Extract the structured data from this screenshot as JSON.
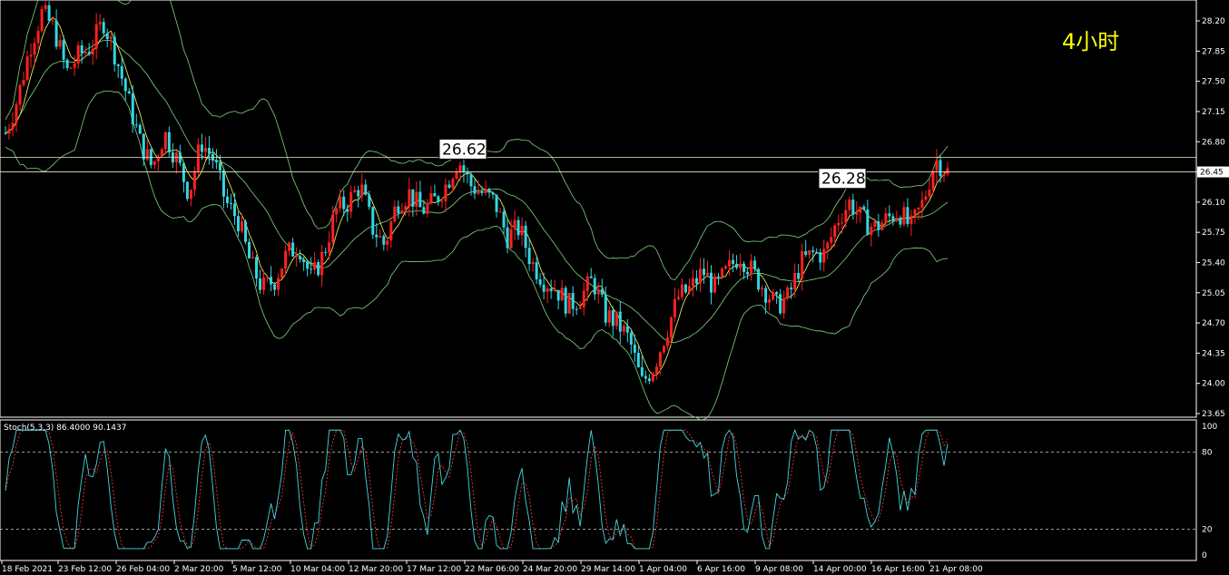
{
  "chart_data": {
    "type": "candlestick",
    "timeframe_label": "4小时",
    "price_axis": {
      "ticks": [
        "28.20",
        "27.85",
        "27.50",
        "27.15",
        "26.80",
        "26.45",
        "26.10",
        "25.75",
        "25.40",
        "25.05",
        "24.70",
        "24.35",
        "24.00",
        "23.65"
      ],
      "ylim": [
        23.65,
        28.4
      ],
      "current_price": "26.45"
    },
    "time_axis": {
      "ticks": [
        "18 Feb 2021",
        "23 Feb 12:00",
        "26 Feb 04:00",
        "2 Mar 20:00",
        "5 Mar 12:00",
        "10 Mar 04:00",
        "12 Mar 20:00",
        "17 Mar 12:00",
        "22 Mar 06:00",
        "24 Mar 20:00",
        "29 Mar 14:00",
        "1 Apr 04:00",
        "6 Apr 16:00",
        "9 Apr 08:00",
        "14 Apr 00:00",
        "16 Apr 16:00",
        "21 Apr 08:00"
      ]
    },
    "annotations": [
      {
        "label": "26.62",
        "value": 26.62
      },
      {
        "label": "26.28",
        "value": 26.28
      }
    ],
    "horizontal_lines": [
      26.62,
      26.45
    ],
    "price_path": [
      26.9,
      27.3,
      27.9,
      28.3,
      28.1,
      27.6,
      27.8,
      27.9,
      28.2,
      27.8,
      27.3,
      26.8,
      26.5,
      26.9,
      26.6,
      26.2,
      26.8,
      26.6,
      26.1,
      25.9,
      25.4,
      25.1,
      25.2,
      25.5,
      25.6,
      25.2,
      25.5,
      26.0,
      26.1,
      26.3,
      25.8,
      25.6,
      26.1,
      26.2,
      26.0,
      26.1,
      26.3,
      26.6,
      26.3,
      26.2,
      26.1,
      25.7,
      25.8,
      25.4,
      25.2,
      25.1,
      24.9,
      25.0,
      25.2,
      24.8,
      24.7,
      24.5,
      24.0,
      24.2,
      24.6,
      25.0,
      25.1,
      25.3,
      25.1,
      25.3,
      25.5,
      25.3,
      25.1,
      24.9,
      25.0,
      25.4,
      25.5,
      25.5,
      25.9,
      26.1,
      25.9,
      25.8,
      25.9,
      26.0,
      25.8,
      26.1,
      26.6,
      26.45
    ],
    "indicator": {
      "name": "Stoch(5,3,3)",
      "label": "Stoch(5,3,3) 86.4000 90.1437",
      "main": 86.4,
      "signal": 90.1437,
      "levels": [
        20,
        80
      ],
      "ticks": [
        "100",
        "80",
        "20",
        "0"
      ],
      "ylim": [
        0,
        100
      ]
    }
  }
}
